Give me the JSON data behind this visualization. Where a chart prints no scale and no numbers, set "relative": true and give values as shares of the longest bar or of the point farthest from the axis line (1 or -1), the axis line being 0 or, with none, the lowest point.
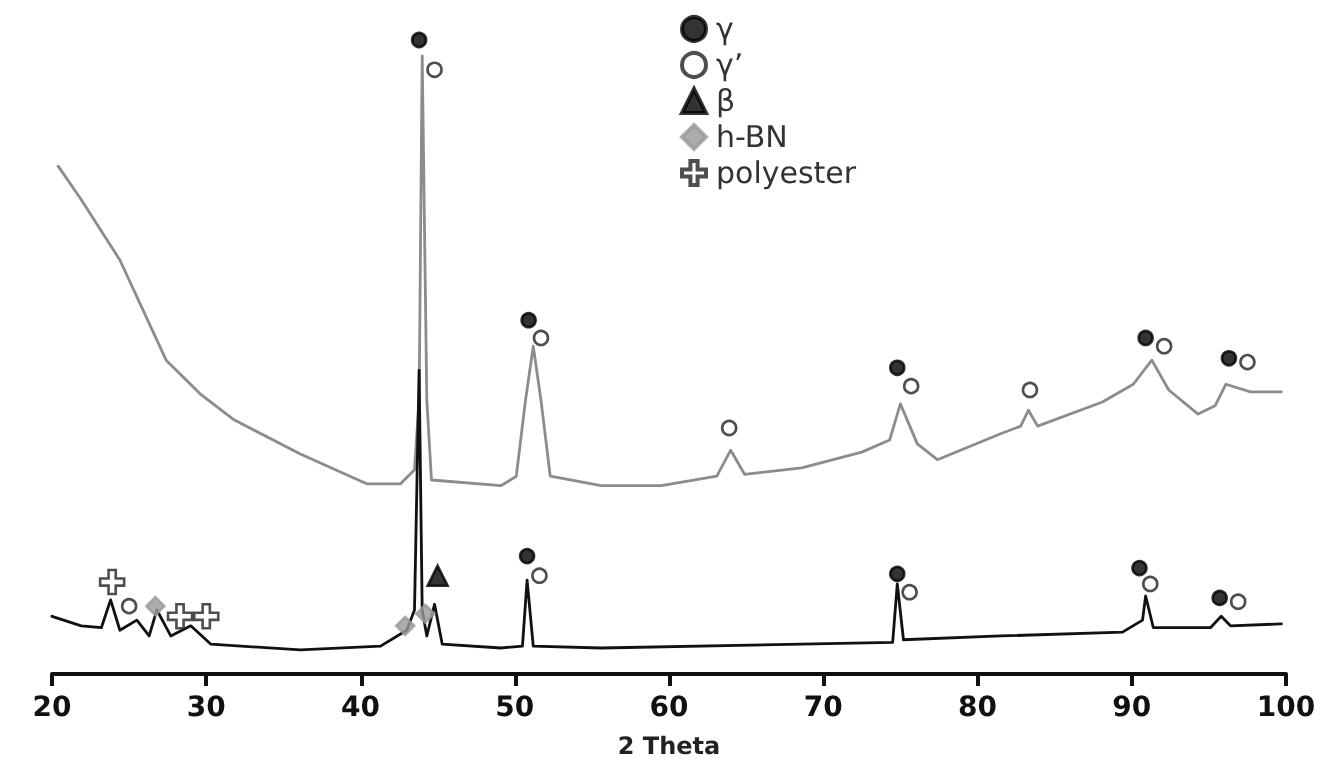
{
  "chart_data": {
    "type": "line",
    "relative": true,
    "xlabel": "2 Theta",
    "xlim": [
      20,
      100
    ],
    "xticks": [
      20,
      30,
      40,
      50,
      60,
      70,
      80,
      90,
      100
    ],
    "grid": false,
    "legend": "top",
    "tick_labels": "x",
    "series": [
      {
        "color": "#8c8c8c",
        "marker": "none",
        "line_style": "solid",
        "x": [
          20.4,
          21.9,
          24.4,
          27.4,
          29.6,
          31.8,
          36.1,
          40.4,
          42.6,
          43.5,
          43.8,
          44.0,
          44.3,
          44.6,
          49.1,
          50.1,
          50.7,
          51.2,
          51.7,
          52.3,
          55.6,
          59.5,
          63.1,
          64.0,
          64.9,
          68.6,
          72.5,
          74.3,
          75.0,
          76.1,
          77.4,
          81.5,
          82.8,
          83.3,
          83.9,
          88.1,
          90.1,
          91.3,
          92.4,
          94.3,
          95.4,
          96.1,
          97.7,
          99.7
        ],
        "values": [
          0.801,
          0.748,
          0.653,
          0.495,
          0.442,
          0.401,
          0.347,
          0.3,
          0.3,
          0.322,
          0.432,
          0.975,
          0.432,
          0.306,
          0.297,
          0.312,
          0.432,
          0.517,
          0.432,
          0.312,
          0.297,
          0.297,
          0.312,
          0.353,
          0.315,
          0.325,
          0.35,
          0.369,
          0.426,
          0.363,
          0.338,
          0.379,
          0.391,
          0.416,
          0.391,
          0.429,
          0.457,
          0.495,
          0.448,
          0.41,
          0.423,
          0.457,
          0.445,
          0.445
        ]
      },
      {
        "color": "#111111",
        "marker": "none",
        "line_style": "solid",
        "x": [
          20.0,
          21.9,
          23.2,
          23.8,
          24.4,
          25.5,
          26.3,
          26.8,
          27.7,
          29.0,
          30.3,
          36.1,
          41.3,
          43.0,
          43.5,
          43.8,
          44.0,
          44.3,
          44.8,
          45.3,
          49.1,
          50.5,
          50.8,
          51.2,
          55.6,
          68.6,
          74.5,
          74.8,
          75.2,
          81.5,
          89.4,
          90.7,
          90.9,
          91.4,
          95.1,
          95.8,
          96.4,
          99.7
        ],
        "values": [
          0.091,
          0.076,
          0.073,
          0.117,
          0.069,
          0.085,
          0.06,
          0.101,
          0.06,
          0.076,
          0.047,
          0.038,
          0.044,
          0.069,
          0.101,
          0.479,
          0.101,
          0.06,
          0.11,
          0.047,
          0.041,
          0.044,
          0.148,
          0.044,
          0.041,
          0.047,
          0.05,
          0.142,
          0.054,
          0.06,
          0.066,
          0.085,
          0.123,
          0.073,
          0.073,
          0.091,
          0.076,
          0.079
        ]
      },
      {
        "type": "scatter",
        "name": "γ",
        "color": "#000000",
        "marker": "circle",
        "x": [
          43.8,
          50.9,
          74.8,
          90.9,
          96.3,
          50.8,
          74.8,
          90.5,
          95.7
        ],
        "values": [
          1.0,
          0.558,
          0.483,
          0.53,
          0.498,
          0.186,
          0.158,
          0.167,
          0.12
        ]
      },
      {
        "type": "scatter",
        "name": "γ’",
        "color": "#ffffff",
        "marker": "circle",
        "x": [
          44.8,
          51.7,
          63.9,
          75.7,
          83.4,
          92.1,
          97.5,
          25.0,
          51.6,
          75.6,
          91.2,
          96.9
        ],
        "values": [
          0.953,
          0.53,
          0.388,
          0.454,
          0.448,
          0.517,
          0.492,
          0.107,
          0.155,
          0.129,
          0.142,
          0.114
        ]
      },
      {
        "type": "scatter",
        "name": "β",
        "color": "#000000",
        "marker": "triangle",
        "x": [
          45.0
        ],
        "values": [
          0.155
        ]
      },
      {
        "type": "scatter",
        "name": "h-BN",
        "color": "#999999",
        "marker": "diamond",
        "x": [
          26.7,
          42.9,
          44.2
        ],
        "values": [
          0.107,
          0.076,
          0.095
        ]
      },
      {
        "type": "scatter",
        "name": "polyester",
        "color": "#ffffff",
        "marker": "cross",
        "x": [
          23.9,
          28.3,
          30.0
        ],
        "values": [
          0.145,
          0.091,
          0.091
        ]
      }
    ]
  }
}
